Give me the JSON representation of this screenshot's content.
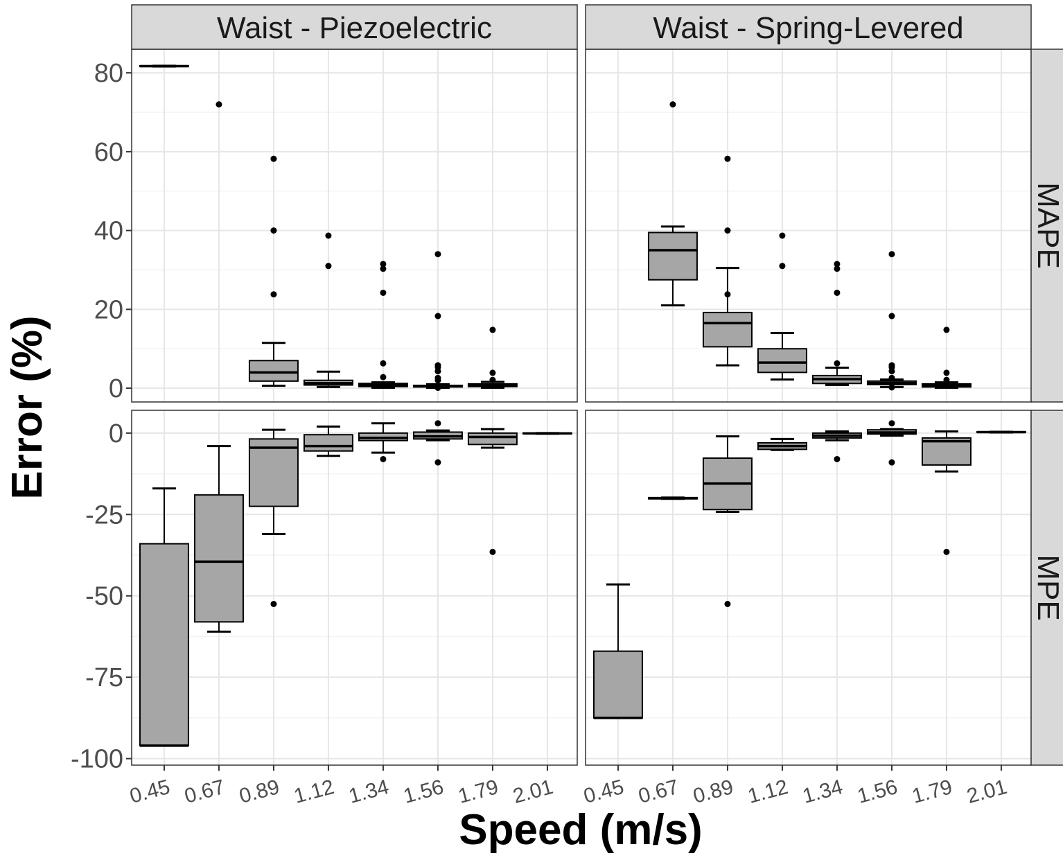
{
  "chart_data": {
    "type": "boxplot",
    "xlabel": "Speed (m/s)",
    "ylabel": "Error (%)",
    "categories": [
      "0.45",
      "0.67",
      "0.89",
      "1.12",
      "1.34",
      "1.56",
      "1.79",
      "2.01"
    ],
    "columns": [
      "Waist - Piezoelectric",
      "Waist - Spring-Levered"
    ],
    "rows": [
      "MAPE",
      "MPE"
    ],
    "row_ylim": {
      "MAPE": [
        -3.5,
        86
      ],
      "MPE": [
        -102,
        7
      ]
    },
    "row_yticks": {
      "MAPE": [
        0,
        20,
        40,
        60,
        80
      ],
      "MPE": [
        0,
        -25,
        -50,
        -75,
        -100
      ]
    },
    "colors": {
      "box_fill": "#a6a6a6",
      "strip_fill": "#d9d9d9",
      "grid_major": "#e6e6e6",
      "grid_minor": "#f3f3f3",
      "panel_border": "#333333"
    },
    "grid": true,
    "panels": [
      {
        "column": "Waist - Piezoelectric",
        "row": "MAPE",
        "boxes": [
          {
            "category": "0.45",
            "q1": 81.6,
            "median": 81.7,
            "q3": 81.8,
            "whisker_low": 81.6,
            "whisker_high": 81.8,
            "outliers": []
          },
          {
            "category": "0.67",
            "q1": null,
            "median": null,
            "q3": null,
            "whisker_low": null,
            "whisker_high": null,
            "outliers": [
              72
            ]
          },
          {
            "category": "0.89",
            "q1": 1.8,
            "median": 4,
            "q3": 7,
            "whisker_low": 0.6,
            "whisker_high": 11.5,
            "outliers": [
              58.2,
              40,
              23.8
            ]
          },
          {
            "category": "1.12",
            "q1": 0.8,
            "median": 1.3,
            "q3": 2,
            "whisker_low": 0.3,
            "whisker_high": 4.2,
            "outliers": [
              38.7,
              31
            ]
          },
          {
            "category": "1.34",
            "q1": 0.4,
            "median": 0.8,
            "q3": 1.2,
            "whisker_low": 0.1,
            "whisker_high": 1.5,
            "outliers": [
              31.5,
              30.3,
              24.2,
              6.3,
              2.8
            ]
          },
          {
            "category": "1.56",
            "q1": 0.3,
            "median": 0.5,
            "q3": 0.7,
            "whisker_low": 0.1,
            "whisker_high": 1,
            "outliers": [
              34,
              18.3,
              5.8,
              5.3,
              4.3,
              2.6,
              2,
              0.1
            ]
          },
          {
            "category": "1.79",
            "q1": 0.4,
            "median": 0.7,
            "q3": 1.1,
            "whisker_low": 0.1,
            "whisker_high": 1.6,
            "outliers": [
              14.8,
              3.9,
              2.1
            ]
          },
          {
            "category": "2.01",
            "q1": null,
            "median": null,
            "q3": null,
            "whisker_low": null,
            "whisker_high": null,
            "outliers": []
          }
        ]
      },
      {
        "column": "Waist - Spring-Levered",
        "row": "MAPE",
        "boxes": [
          {
            "category": "0.45",
            "q1": null,
            "median": null,
            "q3": null,
            "whisker_low": null,
            "whisker_high": null,
            "outliers": []
          },
          {
            "category": "0.67",
            "q1": 27.5,
            "median": 35,
            "q3": 39.5,
            "whisker_low": 21,
            "whisker_high": 41,
            "outliers": [
              72
            ]
          },
          {
            "category": "0.89",
            "q1": 10.5,
            "median": 16.5,
            "q3": 19.2,
            "whisker_low": 5.8,
            "whisker_high": 30.5,
            "outliers": [
              58.2,
              40,
              23.8
            ]
          },
          {
            "category": "1.12",
            "q1": 4,
            "median": 6.5,
            "q3": 10,
            "whisker_low": 2.2,
            "whisker_high": 14,
            "outliers": [
              38.7,
              31
            ]
          },
          {
            "category": "1.34",
            "q1": 1.2,
            "median": 2.3,
            "q3": 3.2,
            "whisker_low": 0.8,
            "whisker_high": 5.2,
            "outliers": [
              31.5,
              30.3,
              24.2,
              6.3
            ]
          },
          {
            "category": "1.56",
            "q1": 0.9,
            "median": 1.3,
            "q3": 1.8,
            "whisker_low": 0.3,
            "whisker_high": 2.2,
            "outliers": [
              34,
              18.3,
              5.8,
              5.3,
              4.3,
              2.6,
              0.2
            ]
          },
          {
            "category": "1.79",
            "q1": 0.3,
            "median": 0.7,
            "q3": 1.1,
            "whisker_low": 0.1,
            "whisker_high": 1.5,
            "outliers": [
              14.8,
              3.9,
              2.1
            ]
          },
          {
            "category": "2.01",
            "q1": null,
            "median": null,
            "q3": null,
            "whisker_low": null,
            "whisker_high": null,
            "outliers": []
          }
        ]
      },
      {
        "column": "Waist - Piezoelectric",
        "row": "MPE",
        "boxes": [
          {
            "category": "0.45",
            "q1": -96,
            "median": -96,
            "q3": -34,
            "whisker_low": -96,
            "whisker_high": -17,
            "outliers": []
          },
          {
            "category": "0.67",
            "q1": -58,
            "median": -39.5,
            "q3": -19,
            "whisker_low": -61,
            "whisker_high": -4,
            "outliers": []
          },
          {
            "category": "0.89",
            "q1": -22.5,
            "median": -4.5,
            "q3": -1.8,
            "whisker_low": -31,
            "whisker_high": 1,
            "outliers": [
              -52.5
            ]
          },
          {
            "category": "1.12",
            "q1": -5.5,
            "median": -4,
            "q3": -0.5,
            "whisker_low": -7,
            "whisker_high": 2,
            "outliers": []
          },
          {
            "category": "1.34",
            "q1": -2.3,
            "median": -1.5,
            "q3": 0,
            "whisker_low": -6,
            "whisker_high": 3,
            "outliers": [
              -8
            ]
          },
          {
            "category": "1.56",
            "q1": -1.8,
            "median": -1,
            "q3": 0.3,
            "whisker_low": -2.2,
            "whisker_high": 0.8,
            "outliers": [
              3,
              -9
            ]
          },
          {
            "category": "1.79",
            "q1": -3.5,
            "median": -1.2,
            "q3": 0,
            "whisker_low": -4.5,
            "whisker_high": 1.2,
            "outliers": [
              -36.5
            ]
          },
          {
            "category": "2.01",
            "q1": -0.2,
            "median": -0.1,
            "q3": 0,
            "whisker_low": -0.2,
            "whisker_high": 0,
            "outliers": []
          }
        ]
      },
      {
        "column": "Waist - Spring-Levered",
        "row": "MPE",
        "boxes": [
          {
            "category": "0.45",
            "q1": -87.5,
            "median": -87.5,
            "q3": -67,
            "whisker_low": -87.5,
            "whisker_high": -46.5,
            "outliers": []
          },
          {
            "category": "0.67",
            "q1": -20.2,
            "median": -20,
            "q3": -19.8,
            "whisker_low": -20.2,
            "whisker_high": -19.8,
            "outliers": []
          },
          {
            "category": "0.89",
            "q1": -23.5,
            "median": -15.5,
            "q3": -7.7,
            "whisker_low": -24.2,
            "whisker_high": -1,
            "outliers": [
              -52.5
            ]
          },
          {
            "category": "1.12",
            "q1": -5,
            "median": -4,
            "q3": -3,
            "whisker_low": -5.2,
            "whisker_high": -1.8,
            "outliers": []
          },
          {
            "category": "1.34",
            "q1": -1.5,
            "median": -0.8,
            "q3": 0,
            "whisker_low": -2.2,
            "whisker_high": 0.5,
            "outliers": [
              -8
            ]
          },
          {
            "category": "1.56",
            "q1": -0.3,
            "median": 0.2,
            "q3": 1,
            "whisker_low": -0.8,
            "whisker_high": 1.2,
            "outliers": [
              3,
              -9
            ]
          },
          {
            "category": "1.79",
            "q1": -9.8,
            "median": -2.5,
            "q3": -1.5,
            "whisker_low": -11.8,
            "whisker_high": 0.5,
            "outliers": [
              -36.5
            ]
          },
          {
            "category": "2.01",
            "q1": 0.2,
            "median": 0.3,
            "q3": 0.4,
            "whisker_low": 0.2,
            "whisker_high": 0.4,
            "outliers": []
          }
        ]
      }
    ]
  }
}
